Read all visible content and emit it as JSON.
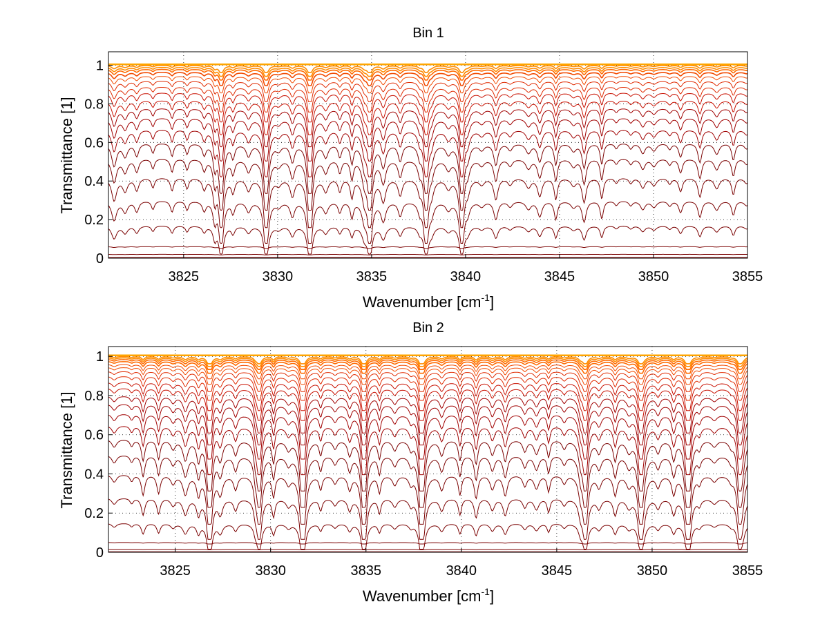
{
  "chart_data": [
    {
      "type": "line",
      "title": "Bin 1",
      "xlabel_main": "Wavenumber [cm",
      "xlabel_sup": "-1",
      "xlabel_end": "]",
      "ylabel": "Transmittance [1]",
      "xlim": [
        3821,
        3855
      ],
      "ylim": [
        0,
        1.07
      ],
      "xticks": [
        3825,
        3830,
        3835,
        3840,
        3845,
        3850,
        3855
      ],
      "yticks": [
        0,
        0.2,
        0.4,
        0.6,
        0.8,
        1
      ],
      "grid": true,
      "x_range": [
        3821,
        3855
      ],
      "series_description": "Family of spectral transmittance curves; baselines approx.",
      "baseline_levels": [
        0.005,
        0.02,
        0.06,
        0.17,
        0.3,
        0.42,
        0.52,
        0.6,
        0.67,
        0.73,
        0.78,
        0.82,
        0.86,
        0.89,
        0.92,
        0.945,
        0.965,
        0.98,
        0.99,
        1.0
      ],
      "strong_lines_x": [
        3831.7,
        3837.9,
        3834.9,
        3839.8,
        3829.4,
        3827.0
      ],
      "colors": [
        "#7a0000",
        "#a00000",
        "#c81000",
        "#e02a00",
        "#f24a00",
        "#ff6a00",
        "#ff8c00"
      ],
      "top_colors": [
        "#ffa500",
        "#1e90ff"
      ]
    },
    {
      "type": "line",
      "title": "Bin 2",
      "xlabel_main": "Wavenumber [cm",
      "xlabel_sup": "-1",
      "xlabel_end": "]",
      "ylabel": "Transmittance [1]",
      "xlim": [
        3821.5,
        3855
      ],
      "ylim": [
        0,
        1.05
      ],
      "xticks": [
        3825,
        3830,
        3835,
        3840,
        3845,
        3850,
        3855
      ],
      "yticks": [
        0,
        0.2,
        0.4,
        0.6,
        0.8,
        1
      ],
      "grid": true,
      "x_range": [
        3821.5,
        3855
      ],
      "baseline_levels": [
        0.003,
        0.015,
        0.05,
        0.15,
        0.28,
        0.4,
        0.5,
        0.58,
        0.65,
        0.71,
        0.76,
        0.8,
        0.84,
        0.87,
        0.9,
        0.925,
        0.945,
        0.96,
        0.975,
        0.985,
        0.993,
        1.0
      ],
      "strong_lines_x": [
        3826.8,
        3829.4,
        3831.7,
        3834.9,
        3837.9,
        3846.5,
        3849.4,
        3851.9,
        3854.6
      ],
      "colors": [
        "#7a0000",
        "#a00000",
        "#c81000",
        "#e02a00",
        "#f24a00",
        "#ff6a00",
        "#ff8c00"
      ],
      "top_colors": [
        "#ffa500",
        "#1e90ff"
      ]
    }
  ]
}
